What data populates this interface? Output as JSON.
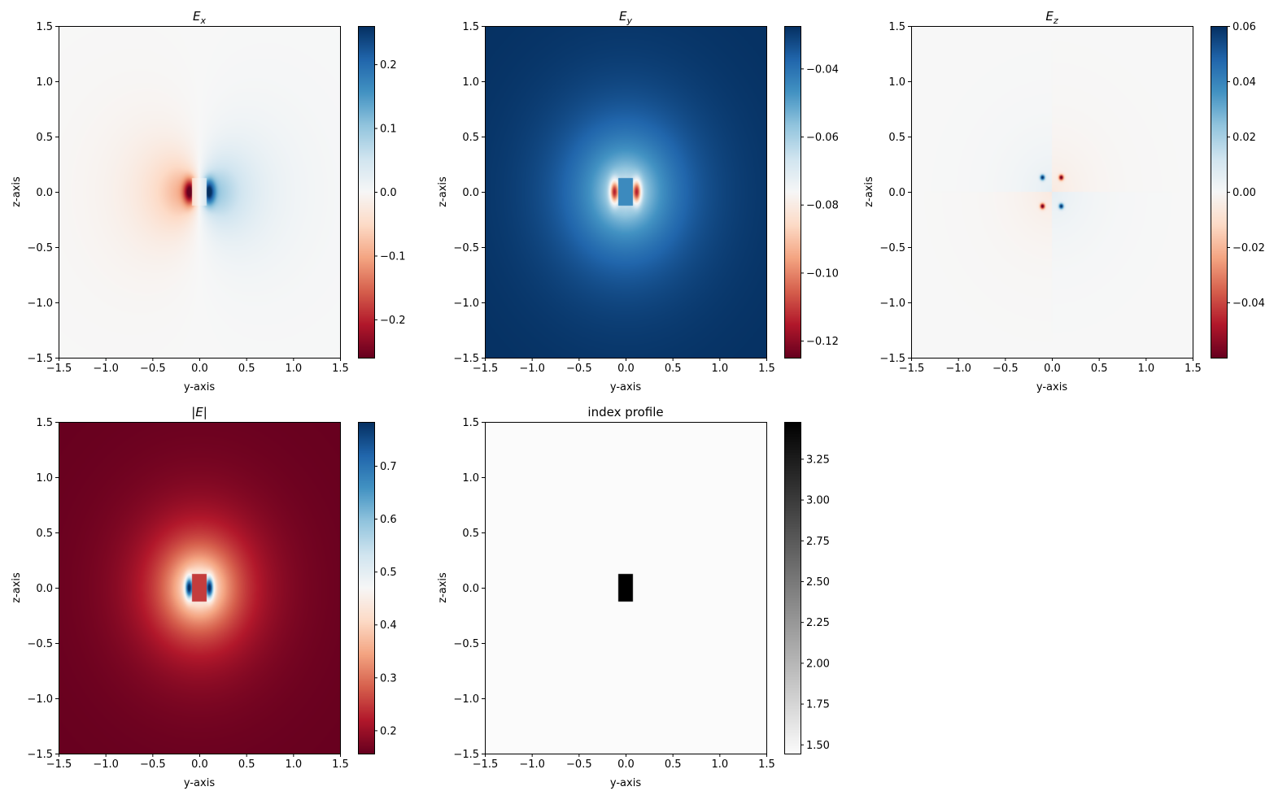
{
  "chart_data": [
    {
      "type": "heatmap",
      "title_main": "E",
      "title_sub": "x",
      "title_italic": true,
      "xlabel": "y-axis",
      "ylabel": "z-axis",
      "xlim": [
        -1.5,
        1.5
      ],
      "ylim": [
        -1.5,
        1.5
      ],
      "xticks": [
        -1.5,
        -1.0,
        -0.5,
        0.0,
        0.5,
        1.0,
        1.5
      ],
      "xtick_labels": [
        "−1.5",
        "−1.0",
        "−0.5",
        "0.0",
        "0.5",
        "1.0",
        "1.5"
      ],
      "yticks": [
        1.5,
        1.0,
        0.5,
        0.0,
        -0.5,
        -1.0,
        -1.5
      ],
      "ytick_labels": [
        "1.5",
        "1.0",
        "0.5",
        "0.0",
        "−0.5",
        "−1.0",
        "−1.5"
      ],
      "colormap": "RdBu",
      "field": "Ex",
      "clim": [
        -0.26,
        0.26
      ],
      "cbar_ticks": [
        0.2,
        0.1,
        0.0,
        -0.1,
        -0.2
      ],
      "cbar_labels": [
        "0.2",
        "0.1",
        "0.0",
        "−0.1",
        "−0.2"
      ]
    },
    {
      "type": "heatmap",
      "title_main": "E",
      "title_sub": "y",
      "title_italic": true,
      "xlabel": "y-axis",
      "ylabel": "z-axis",
      "xlim": [
        -1.5,
        1.5
      ],
      "ylim": [
        -1.5,
        1.5
      ],
      "xticks": [
        -1.5,
        -1.0,
        -0.5,
        0.0,
        0.5,
        1.0,
        1.5
      ],
      "xtick_labels": [
        "−1.5",
        "−1.0",
        "−0.5",
        "0.0",
        "0.5",
        "1.0",
        "1.5"
      ],
      "yticks": [
        1.5,
        1.0,
        0.5,
        0.0,
        -0.5,
        -1.0,
        -1.5
      ],
      "ytick_labels": [
        "1.5",
        "1.0",
        "0.5",
        "0.0",
        "−0.5",
        "−1.0",
        "−1.5"
      ],
      "colormap": "RdBu",
      "field": "Ey",
      "clim": [
        -0.125,
        -0.0275
      ],
      "cbar_ticks": [
        -0.04,
        -0.06,
        -0.08,
        -0.1,
        -0.12
      ],
      "cbar_labels": [
        "−0.04",
        "−0.06",
        "−0.08",
        "−0.10",
        "−0.12"
      ]
    },
    {
      "type": "heatmap",
      "title_main": "E",
      "title_sub": "z",
      "title_italic": true,
      "xlabel": "y-axis",
      "ylabel": "z-axis",
      "xlim": [
        -1.5,
        1.5
      ],
      "ylim": [
        -1.5,
        1.5
      ],
      "xticks": [
        -1.5,
        -1.0,
        -0.5,
        0.0,
        0.5,
        1.0,
        1.5
      ],
      "xtick_labels": [
        "−1.5",
        "−1.0",
        "−0.5",
        "0.0",
        "0.5",
        "1.0",
        "1.5"
      ],
      "yticks": [
        1.5,
        1.0,
        0.5,
        0.0,
        -0.5,
        -1.0,
        -1.5
      ],
      "ytick_labels": [
        "1.5",
        "1.0",
        "0.5",
        "0.0",
        "−0.5",
        "−1.0",
        "−1.5"
      ],
      "colormap": "RdBu",
      "field": "Ez",
      "clim": [
        -0.06,
        0.06
      ],
      "cbar_ticks": [
        0.06,
        0.04,
        0.02,
        0.0,
        -0.02,
        -0.04
      ],
      "cbar_labels": [
        "0.06",
        "0.04",
        "0.02",
        "0.00",
        "−0.02",
        "−0.04"
      ]
    },
    {
      "type": "heatmap",
      "title_main": "|E|",
      "title_sub": "",
      "title_italic": true,
      "xlabel": "y-axis",
      "ylabel": "z-axis",
      "xlim": [
        -1.5,
        1.5
      ],
      "ylim": [
        -1.5,
        1.5
      ],
      "xticks": [
        -1.5,
        -1.0,
        -0.5,
        0.0,
        0.5,
        1.0,
        1.5
      ],
      "xtick_labels": [
        "−1.5",
        "−1.0",
        "−0.5",
        "0.0",
        "0.5",
        "1.0",
        "1.5"
      ],
      "yticks": [
        1.5,
        1.0,
        0.5,
        0.0,
        -0.5,
        -1.0,
        -1.5
      ],
      "ytick_labels": [
        "1.5",
        "1.0",
        "0.5",
        "0.0",
        "−0.5",
        "−1.0",
        "−1.5"
      ],
      "colormap": "RdBu",
      "field": "absE",
      "clim": [
        0.156,
        0.783
      ],
      "cbar_ticks": [
        0.7,
        0.6,
        0.5,
        0.4,
        0.3,
        0.2
      ],
      "cbar_labels": [
        "0.7",
        "0.6",
        "0.5",
        "0.4",
        "0.3",
        "0.2"
      ]
    },
    {
      "type": "heatmap",
      "title_main": "index profile",
      "title_sub": "",
      "title_italic": false,
      "xlabel": "y-axis",
      "ylabel": "z-axis",
      "xlim": [
        -1.5,
        1.5
      ],
      "ylim": [
        -1.5,
        1.5
      ],
      "xticks": [
        -1.5,
        -1.0,
        -0.5,
        0.0,
        0.5,
        1.0,
        1.5
      ],
      "xtick_labels": [
        "−1.5",
        "−1.0",
        "−0.5",
        "0.0",
        "0.5",
        "1.0",
        "1.5"
      ],
      "yticks": [
        1.5,
        1.0,
        0.5,
        0.0,
        -0.5,
        -1.0,
        -1.5
      ],
      "ytick_labels": [
        "1.5",
        "1.0",
        "0.5",
        "0.0",
        "−0.5",
        "−1.0",
        "−1.5"
      ],
      "colormap": "Greys",
      "field": "index",
      "clim": [
        1.444,
        3.476
      ],
      "core": {
        "y": [
          -0.08,
          0.08
        ],
        "z": [
          -0.125,
          0.125
        ],
        "n_core": 3.476,
        "n_clad": 1.444
      },
      "cbar_ticks": [
        3.25,
        3.0,
        2.75,
        2.5,
        2.25,
        2.0,
        1.75,
        1.5
      ],
      "cbar_labels": [
        "3.25",
        "3.00",
        "2.75",
        "2.50",
        "2.25",
        "2.00",
        "1.75",
        "1.50"
      ]
    }
  ]
}
